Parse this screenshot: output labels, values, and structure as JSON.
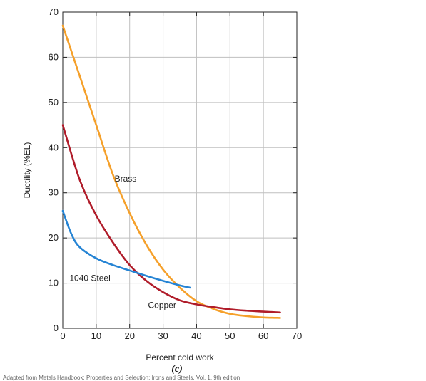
{
  "chart_data": {
    "type": "line",
    "title": "",
    "xlabel": "Percent cold work",
    "ylabel": "Ductility (%EL)",
    "panel_label": "(c)",
    "xlim": [
      0,
      70
    ],
    "ylim": [
      0,
      70
    ],
    "x_ticks": [
      0,
      10,
      20,
      30,
      40,
      50,
      60,
      70
    ],
    "y_ticks": [
      0,
      10,
      20,
      30,
      40,
      50,
      60,
      70
    ],
    "grid": true,
    "legend": "none",
    "series": [
      {
        "name": "Brass",
        "color": "#f5a02a",
        "x": [
          0,
          5,
          10,
          15,
          20,
          25,
          30,
          35,
          40,
          45,
          50,
          55,
          60,
          65
        ],
        "y": [
          67,
          56,
          45,
          34,
          25.5,
          18.5,
          13,
          9,
          6,
          4.3,
          3.2,
          2.7,
          2.4,
          2.3
        ]
      },
      {
        "name": "Copper",
        "color": "#b01c2a",
        "x": [
          0,
          5,
          10,
          15,
          20,
          25,
          30,
          35,
          40,
          45,
          50,
          55,
          60,
          65
        ],
        "y": [
          45,
          33,
          25,
          19,
          14,
          10.5,
          8,
          6.2,
          5.3,
          4.7,
          4.2,
          3.9,
          3.7,
          3.5
        ]
      },
      {
        "name": "1040 Steel",
        "color": "#2684d4",
        "x": [
          0,
          2.5,
          5,
          10,
          15,
          20,
          25,
          30,
          35,
          38
        ],
        "y": [
          26,
          21,
          18,
          15.5,
          14,
          12.8,
          11.6,
          10.5,
          9.5,
          9
        ]
      }
    ],
    "annotations": [
      {
        "text": "Brass",
        "x": 15.5,
        "y": 32.5
      },
      {
        "text": "1040 Steel",
        "x": 2,
        "y": 10.5
      },
      {
        "text": "Copper",
        "x": 25.5,
        "y": 4.5
      }
    ]
  },
  "caption": "Adapted from Metals Handbook: Properties and Selection: Irons and Steels, Vol. 1, 9th edition"
}
